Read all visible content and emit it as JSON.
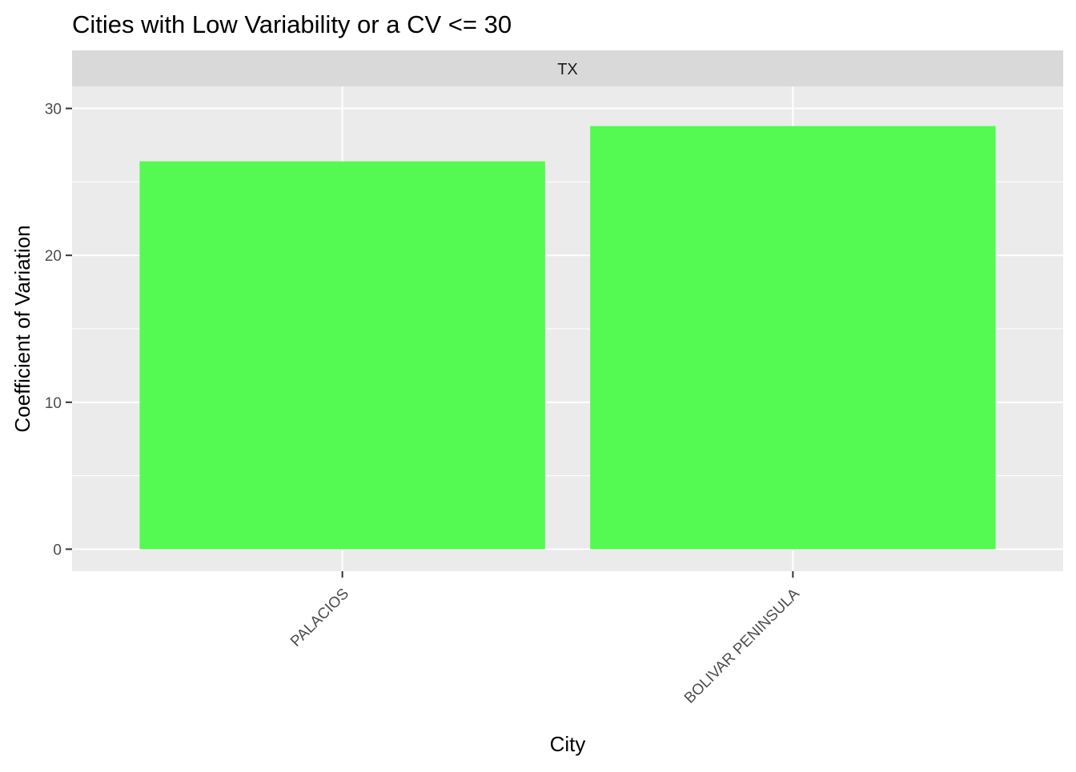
{
  "chart_data": {
    "type": "bar",
    "title": "Cities with Low Variability or a CV <= 30",
    "facet_label": "TX",
    "xlabel": "City",
    "ylabel": "Coefficient of Variation",
    "categories": [
      "PALACIOS",
      "BOLIVAR PENINSULA"
    ],
    "values": [
      26.4,
      28.8
    ],
    "ylim": [
      -1.5,
      31.5
    ],
    "yticks": [
      0,
      10,
      20,
      30
    ],
    "grid": true,
    "legend": "none",
    "colors": {
      "bar": "#4dfa4a",
      "panel": "#ebebeb",
      "grid": "#ffffff",
      "strip": "#d9d9d9",
      "axis_text": "#4d4d4d",
      "tick": "#333333",
      "title": "#000000"
    }
  }
}
